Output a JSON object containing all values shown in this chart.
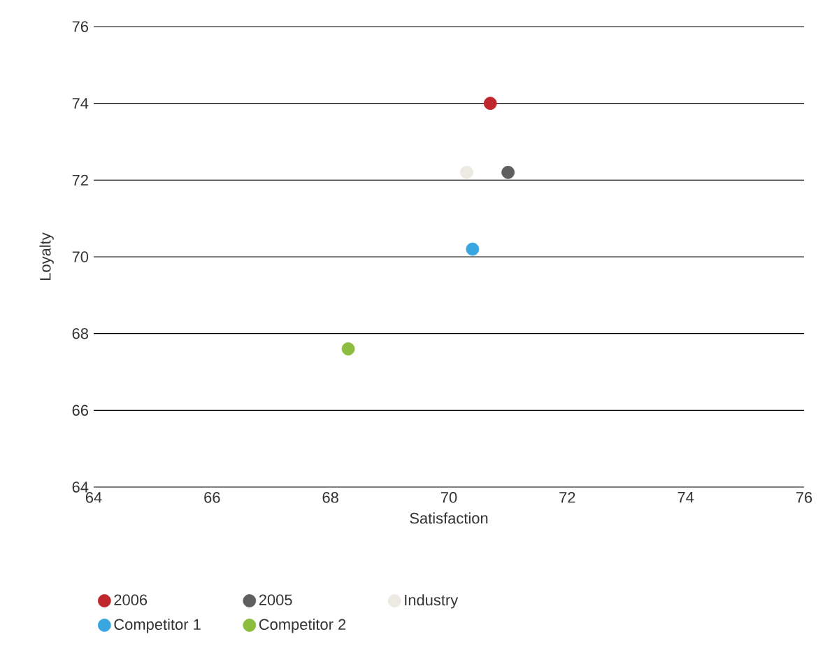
{
  "chart_data": {
    "type": "scatter",
    "xlabel": "Satisfaction",
    "ylabel": "Loyalty",
    "xlim": [
      64,
      76
    ],
    "ylim": [
      64,
      76
    ],
    "xticks": [
      64,
      66,
      68,
      70,
      72,
      74,
      76
    ],
    "yticks": [
      64,
      66,
      68,
      70,
      72,
      74,
      76
    ],
    "grid": "y",
    "legend": "bottom",
    "marker": "circle",
    "series": [
      {
        "name": "2006",
        "color": "#c0272d",
        "x": [
          70.7
        ],
        "values": [
          74.0
        ]
      },
      {
        "name": "2005",
        "color": "#5f5f5f",
        "x": [
          71.0
        ],
        "values": [
          72.2
        ]
      },
      {
        "name": "Industry",
        "color": "#ede9e3",
        "x": [
          70.3
        ],
        "values": [
          72.2
        ]
      },
      {
        "name": "Competitor 1",
        "color": "#3aa6e0",
        "x": [
          70.4
        ],
        "values": [
          70.2
        ]
      },
      {
        "name": "Competitor 2",
        "color": "#8cbd3f",
        "x": [
          68.3
        ],
        "values": [
          67.6
        ]
      }
    ]
  }
}
